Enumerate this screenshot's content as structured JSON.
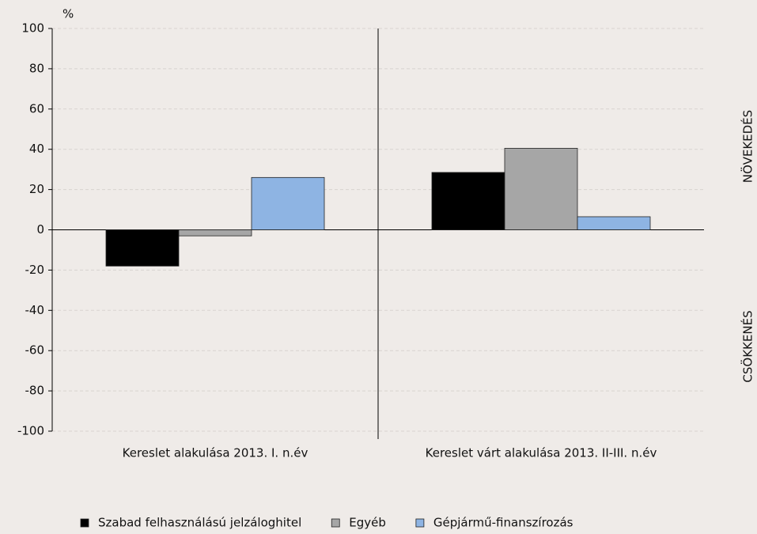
{
  "chart_data": {
    "type": "bar",
    "y_unit": "%",
    "categories": [
      "Kereslet alakulása 2013. I. n.év",
      "Kereslet várt alakulása 2013. II-III.  n.év"
    ],
    "series": [
      {
        "name": "Szabad felhasználású jelzáloghitel",
        "color": "#000000",
        "values": [
          -18,
          28.5
        ]
      },
      {
        "name": "Egyéb",
        "color": "#a6a6a6",
        "values": [
          -3,
          40.5
        ]
      },
      {
        "name": "Gépjármű-finanszírozás",
        "color": "#8eb4e3",
        "values": [
          26,
          6.5
        ]
      }
    ],
    "ylim": [
      -100,
      100
    ],
    "yticks": [
      -100,
      -80,
      -60,
      -40,
      -20,
      0,
      20,
      40,
      60,
      80,
      100
    ],
    "grid": true,
    "annotations": [
      "NÖVEKEDÉS",
      "CSÖKKENÉS"
    ]
  }
}
